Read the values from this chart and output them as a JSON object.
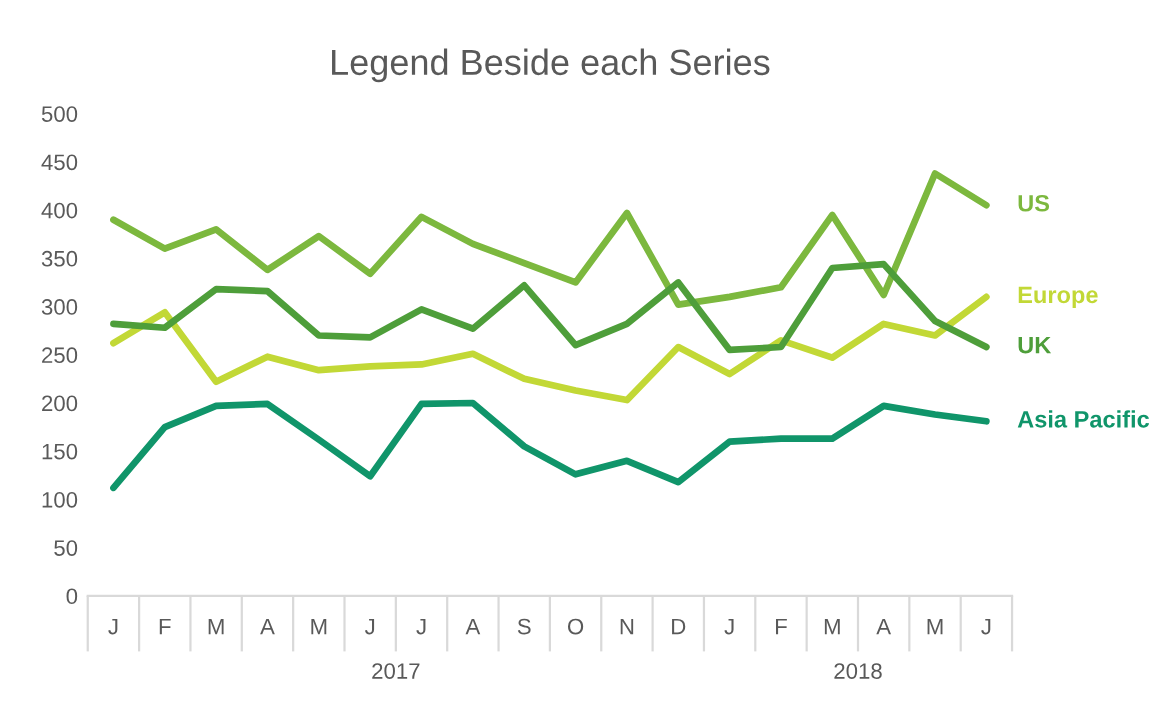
{
  "chart_data": {
    "type": "line",
    "title": "Legend Beside each Series",
    "categories": [
      "J",
      "F",
      "M",
      "A",
      "M",
      "J",
      "J",
      "A",
      "S",
      "O",
      "N",
      "D",
      "J",
      "F",
      "M",
      "A",
      "M",
      "J"
    ],
    "annotations": [
      "2017",
      "2018"
    ],
    "series": [
      {
        "name": "US",
        "color": "#7cb83e",
        "values": [
          390,
          360,
          380,
          338,
          373,
          334,
          393,
          365,
          345,
          325,
          397,
          302,
          310,
          320,
          395,
          312,
          438,
          405
        ]
      },
      {
        "name": "Europe",
        "color": "#c2d836",
        "values": [
          262,
          294,
          222,
          248,
          234,
          238,
          240,
          251,
          225,
          213,
          203,
          258,
          230,
          265,
          247,
          282,
          270,
          310
        ]
      },
      {
        "name": "UK",
        "color": "#4e9e3a",
        "values": [
          282,
          278,
          318,
          316,
          270,
          268,
          297,
          277,
          322,
          260,
          282,
          325,
          255,
          258,
          340,
          344,
          285,
          258
        ]
      },
      {
        "name": "Asia Pacific",
        "color": "#10956a",
        "values": [
          112,
          175,
          197,
          199,
          162,
          124,
          199,
          200,
          155,
          126,
          140,
          118,
          160,
          163,
          163,
          197,
          188,
          181
        ]
      }
    ],
    "ylim": [
      0,
      500
    ],
    "yticks": [
      0,
      50,
      100,
      150,
      200,
      250,
      300,
      350,
      400,
      450,
      500
    ],
    "grid": false,
    "legend": false
  }
}
